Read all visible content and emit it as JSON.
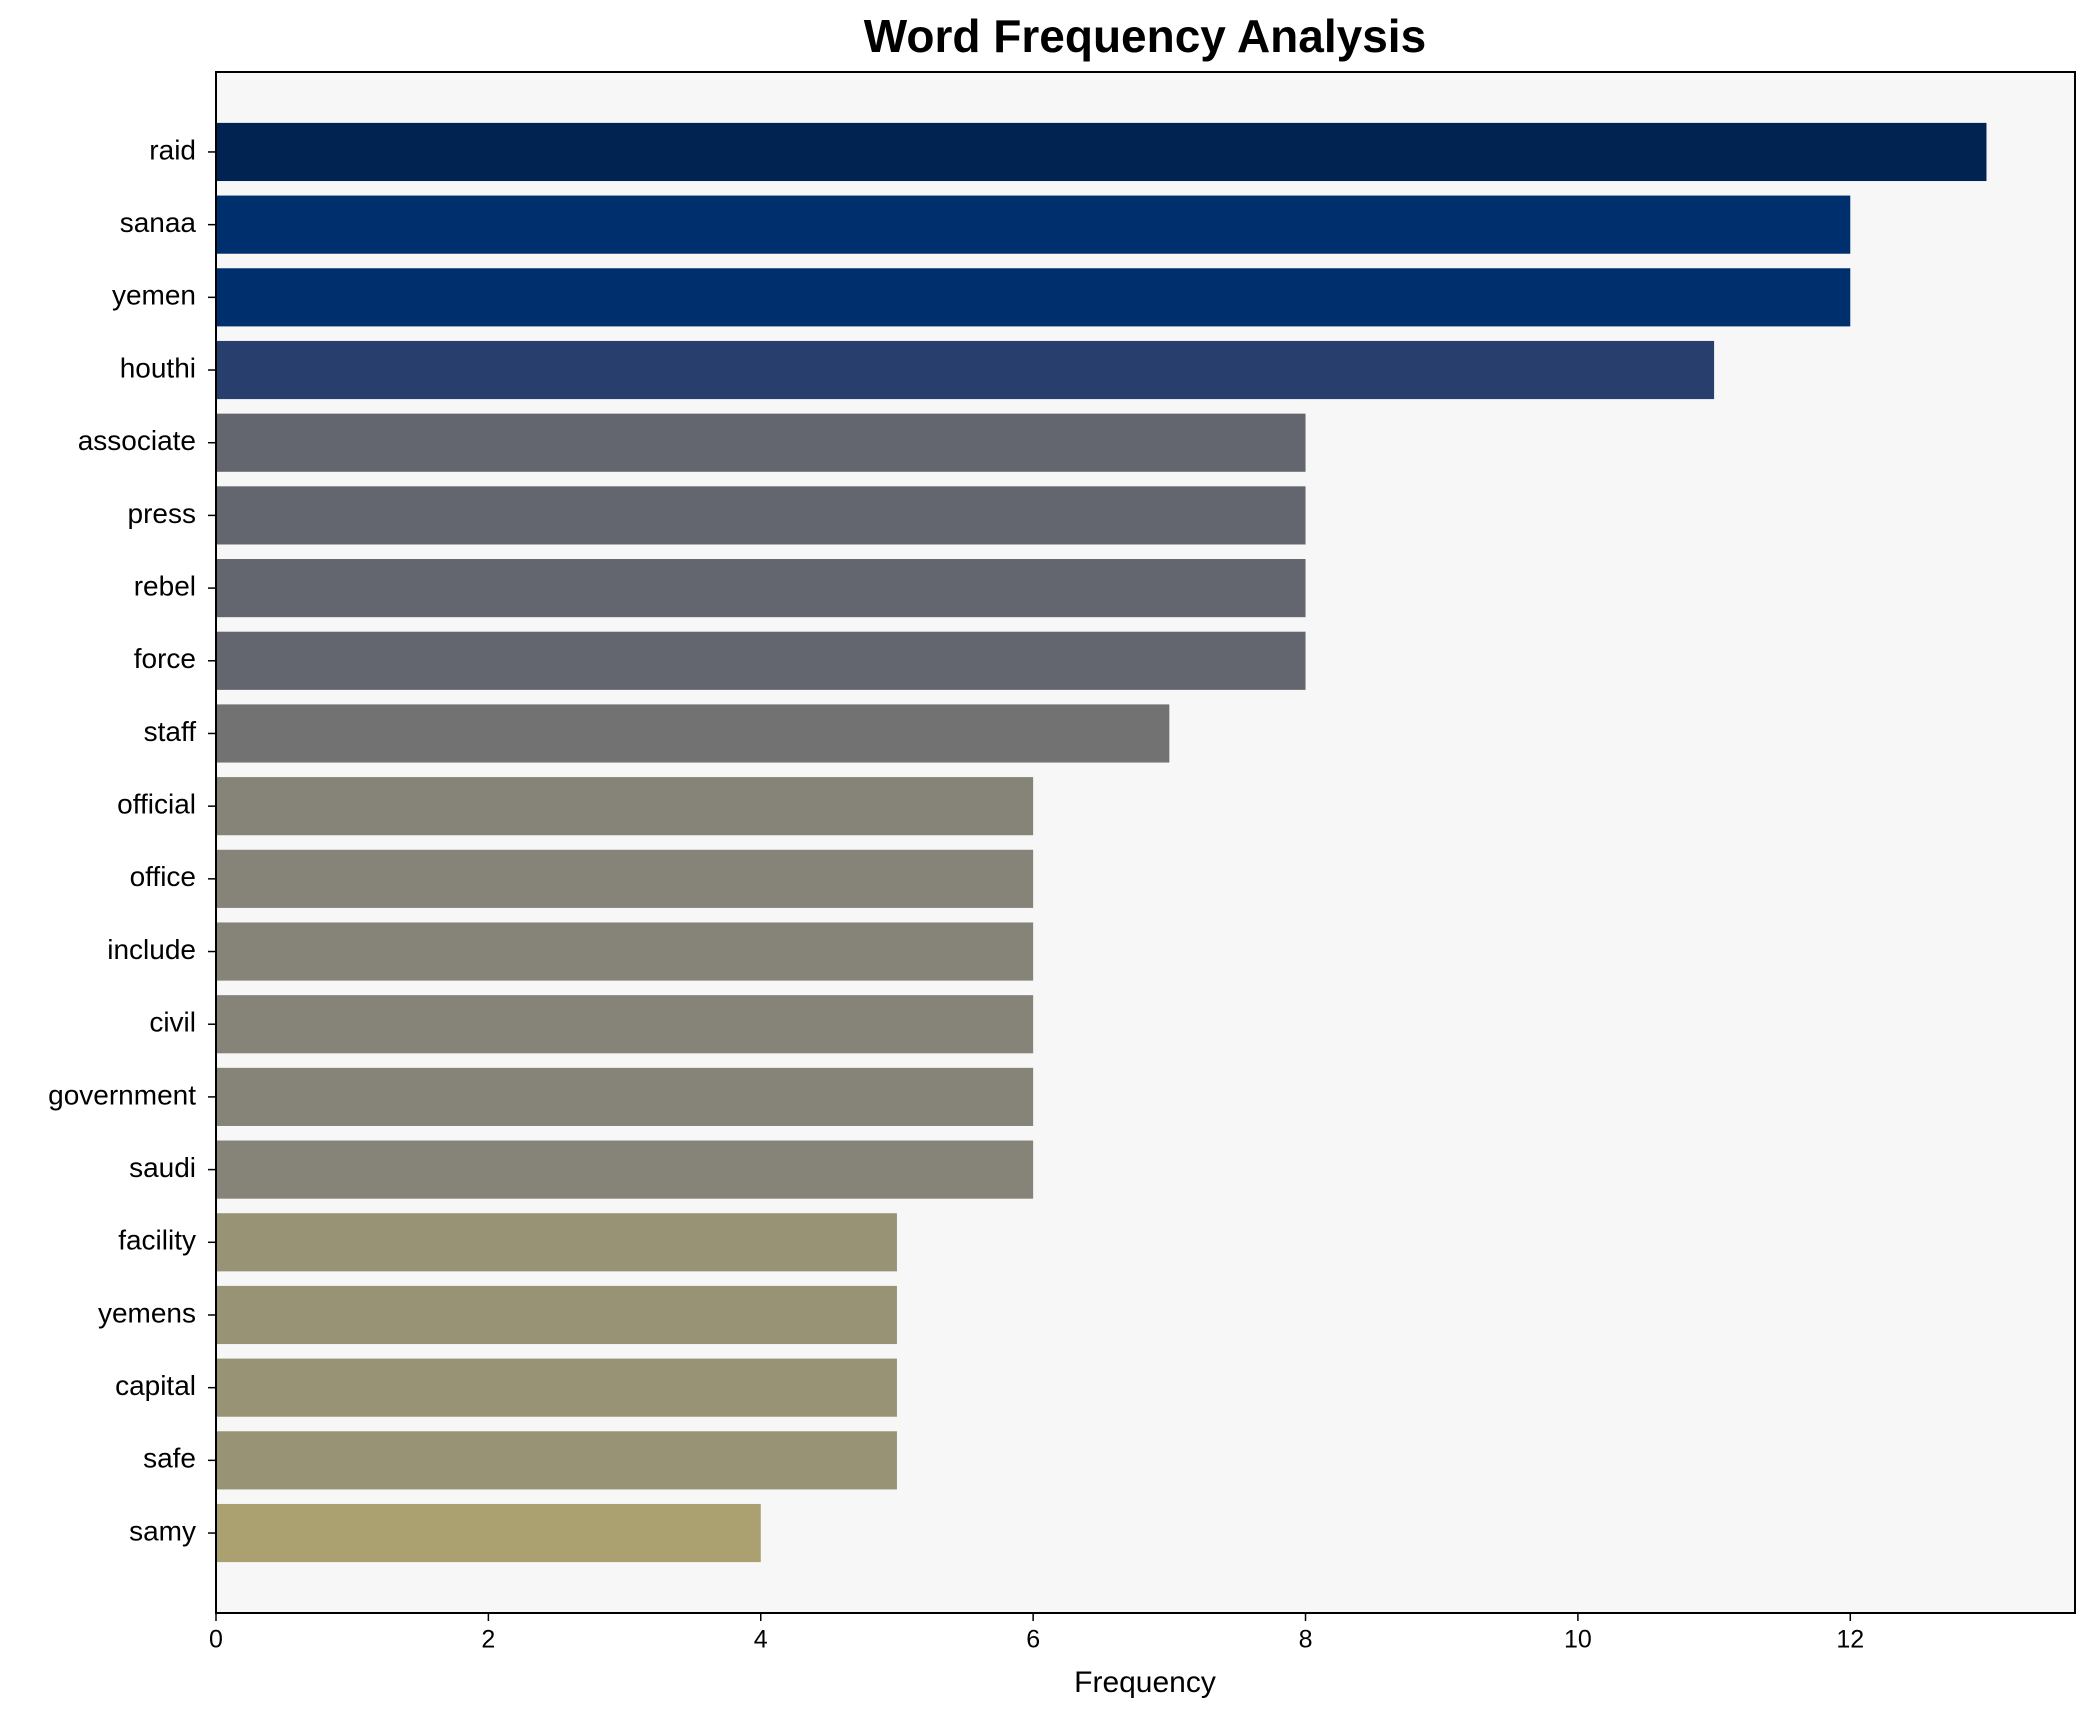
{
  "chart_data": {
    "type": "bar",
    "orientation": "horizontal",
    "title": "Word Frequency Analysis",
    "x_label": "Frequency",
    "categories": [
      "raid",
      "sanaa",
      "yemen",
      "houthi",
      "associate",
      "press",
      "rebel",
      "force",
      "staff",
      "official",
      "office",
      "include",
      "civil",
      "government",
      "saudi",
      "facility",
      "yemens",
      "capital",
      "safe",
      "samy"
    ],
    "values": [
      13,
      12,
      12,
      11,
      8,
      8,
      8,
      8,
      7,
      6,
      6,
      6,
      6,
      6,
      6,
      5,
      5,
      5,
      5,
      4
    ],
    "colors": [
      "#012351",
      "#002f6e",
      "#002f6e",
      "#283e6d",
      "#63656f",
      "#63656f",
      "#63656f",
      "#63656f",
      "#727272",
      "#868379",
      "#868379",
      "#868379",
      "#868379",
      "#868379",
      "#868379",
      "#999375",
      "#999375",
      "#999375",
      "#999375",
      "#aaa070"
    ],
    "xlim": [
      0,
      13.65
    ],
    "xticks": [
      0,
      2,
      4,
      6,
      8,
      10,
      12
    ]
  }
}
